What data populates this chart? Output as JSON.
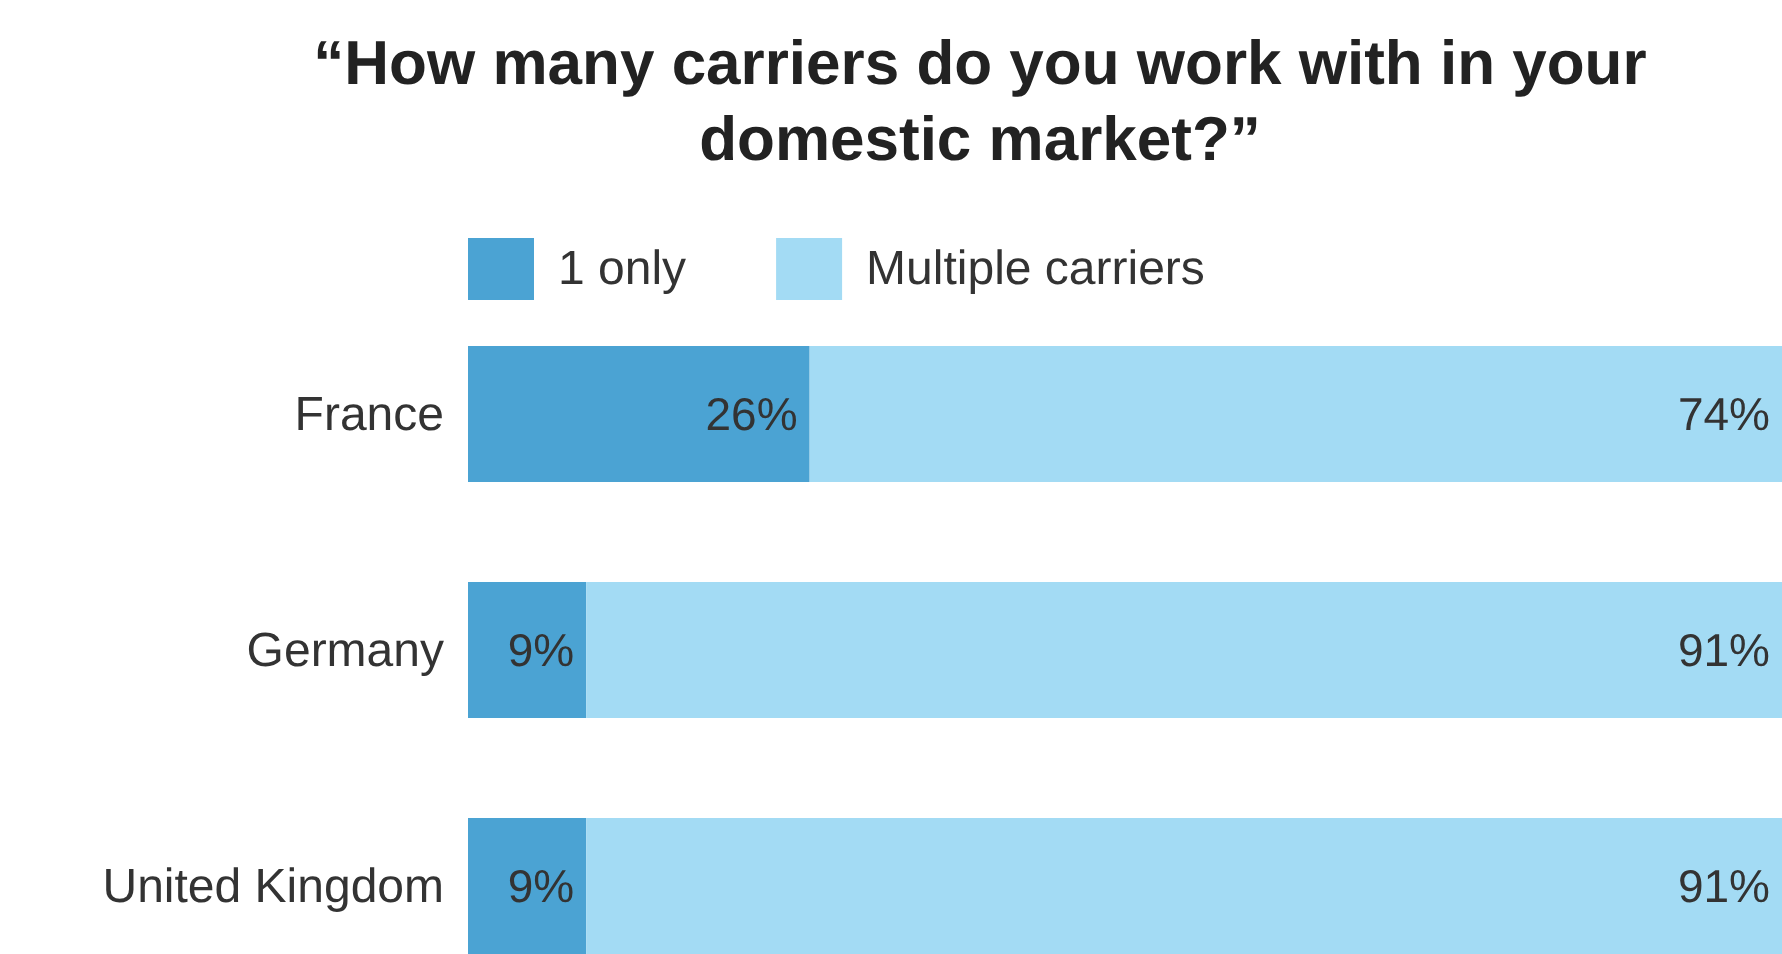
{
  "chart_data": {
    "type": "bar",
    "title": "“How many carriers do you work with in your domestic market?”",
    "orientation": "horizontal",
    "stacked": true,
    "legend": "top",
    "categories": [
      "France",
      "Germany",
      "United Kingdom"
    ],
    "series": [
      {
        "name": "1 only",
        "color": "#4ba3d3",
        "values": [
          26,
          9,
          9
        ],
        "value_labels": [
          "26%",
          "9%",
          "9%"
        ]
      },
      {
        "name": "Multiple carriers",
        "color": "#a3dbf4",
        "values": [
          74,
          91,
          91
        ],
        "value_labels": [
          "74%",
          "91%",
          "91%"
        ]
      }
    ]
  }
}
